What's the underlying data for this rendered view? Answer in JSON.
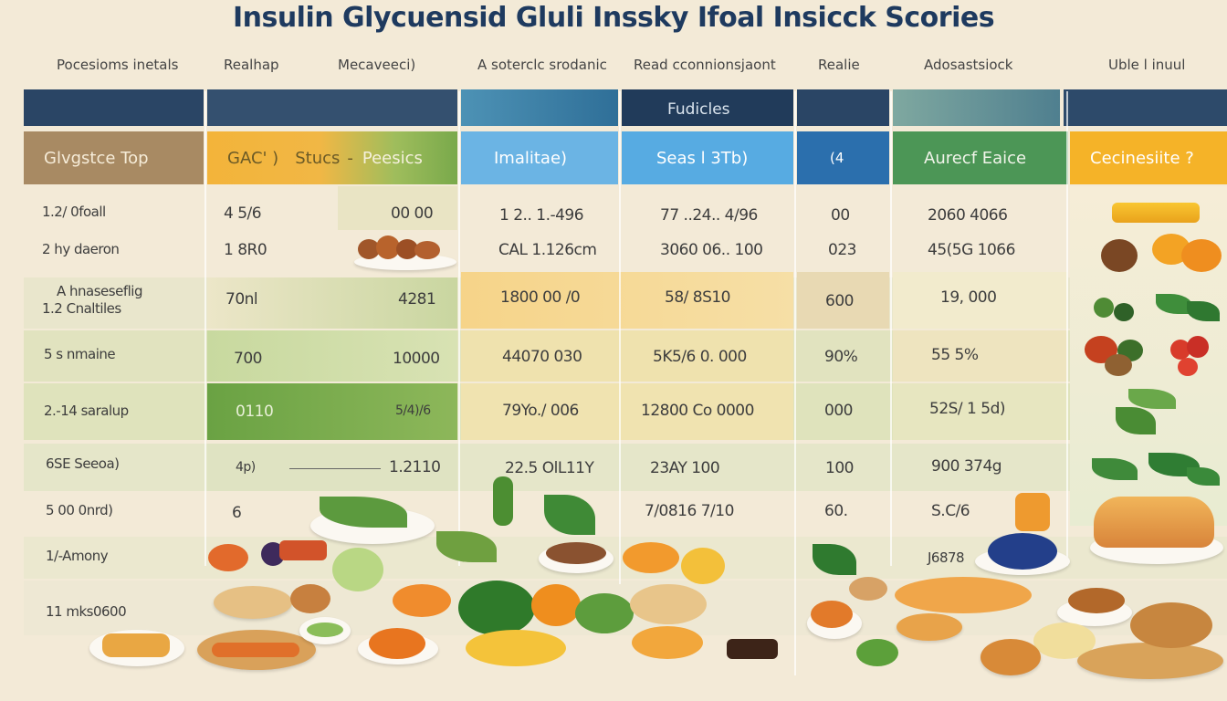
{
  "title": "Insulin Glycuensid Gluli Inssky Ifoal Insicck Scories",
  "columns": [
    "Pocesioms inetals",
    "Realhap",
    "Mecaveeci)",
    "A soterclc srodanic",
    "Read cconnionsjaont",
    "Realie",
    "Adosastsiock",
    "Uble l inuul"
  ],
  "band_label": "Fudicles",
  "subheaders": [
    "Glvgstce Top",
    "GAC' )",
    "Stucs",
    "-",
    "Peesics",
    "Imalitae)",
    "Seas l 3Tb)",
    "(4",
    "Aurecf Eaice",
    "Cecinesiite ?"
  ],
  "rows": [
    {
      "label": "1.2/ 0foall",
      "c1": "4 5/6",
      "c2": "00 00",
      "c3": "1 2.. 1.-496",
      "c4": "77 ..24.. 4/96",
      "c5": "00",
      "c6": "2060 4066"
    },
    {
      "label": "2 hy daeron",
      "c1": "1 8R0",
      "c2": "",
      "c3": "CAL 1.126cm",
      "c4": "3060 06.. 100",
      "c5": "023",
      "c6": "45(5G 1066"
    },
    {
      "label": "A hnaseseflig",
      "label2": "1.2 Cnaltiles",
      "c1": "70nl",
      "c2": "4281",
      "c3": "1800 00 /0",
      "c4": "58/ 8S10",
      "c5": "600",
      "c6": "19, 000"
    },
    {
      "label": "5 s nmaine",
      "c1": "700",
      "c2": "10000",
      "c3": "44070 030",
      "c4": "5K5/6 0. 000",
      "c5": "90%",
      "c6": "55 5%"
    },
    {
      "label": "2.-14 saralup",
      "c1": "0110",
      "c2": "5/4)/6",
      "c3": "79Yo./ 006",
      "c4": "12800 Co 0000",
      "c5": "000",
      "c6": "52S/ 1 5d)"
    },
    {
      "label": "6SE Seeoa)",
      "c1": "4p)",
      "c2": "1.2110",
      "c3": "22.5 OlL11Y",
      "c4": "23AY 100",
      "c5": "100",
      "c6": "900 374g"
    },
    {
      "label": "5 00 0nrd)",
      "c1": "6",
      "c2": "",
      "c3": "",
      "c4": "7/0816 7/10",
      "c5": "60.",
      "c6": "S.C/6"
    },
    {
      "label": "1/-Amony",
      "c1": "",
      "c2": "",
      "c3": "",
      "c4": "",
      "c5": "",
      "c6": "J6878"
    },
    {
      "label": "11 mks0600",
      "c1": "",
      "c2": "",
      "c3": "",
      "c4": "",
      "c5": "",
      "c6": ""
    }
  ],
  "colors": {
    "title": "#1e3a5f",
    "navy": "#2a4565",
    "teal": "#3f7fa0",
    "brown": "#a98a62",
    "orange": "#f2b23a",
    "green": "#6ea348",
    "blue": "#4aa3d8"
  },
  "icons": [
    "food-plate-icon",
    "vegetable-icon",
    "fruit-icon"
  ]
}
